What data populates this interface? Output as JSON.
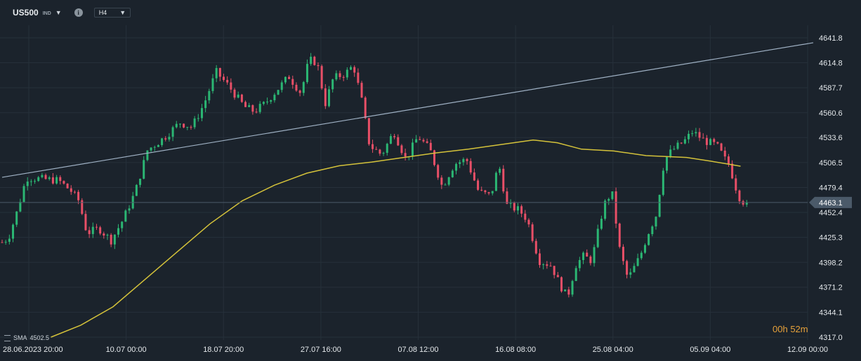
{
  "toolbar": {
    "symbol": "US500",
    "symbol_badge": "IND",
    "info_icon": "i",
    "timeframe": "H4"
  },
  "chart_data": {
    "type": "candlestick",
    "symbol": "US500",
    "timeframe": "H4",
    "y_ticks": [
      "4641.8",
      "4614.8",
      "4587.7",
      "4560.6",
      "4533.6",
      "4506.5",
      "4479.4",
      "4452.4",
      "4425.3",
      "4398.2",
      "4371.2",
      "4344.1",
      "4317.0"
    ],
    "ylim": [
      4317.0,
      4641.8
    ],
    "x_ticks": [
      "28.06.2023  20:00",
      "10.07  00:00",
      "18.07  20:00",
      "27.07  16:00",
      "07.08  12:00",
      "16.08  08:00",
      "25.08  04:00",
      "05.09  04:00",
      "12.09  00:00"
    ],
    "current_price": "4463.1",
    "indicator": {
      "name": "SMA",
      "value": "4502.5",
      "color": "#d4c23a"
    },
    "trendline": {
      "from": {
        "x": "28.06.2023  20:00",
        "y": 4490.5
      },
      "to": {
        "x": "12.09  00:00",
        "y": 4636.5
      },
      "color": "#9fb1c4"
    },
    "close_path": [
      [
        0.0,
        4420
      ],
      [
        0.008,
        4425
      ],
      [
        0.018,
        4452
      ],
      [
        0.03,
        4490
      ],
      [
        0.045,
        4489
      ],
      [
        0.07,
        4487
      ],
      [
        0.085,
        4476
      ],
      [
        0.095,
        4465
      ],
      [
        0.105,
        4430
      ],
      [
        0.12,
        4435
      ],
      [
        0.135,
        4422
      ],
      [
        0.15,
        4445
      ],
      [
        0.165,
        4475
      ],
      [
        0.18,
        4520
      ],
      [
        0.2,
        4533
      ],
      [
        0.22,
        4550
      ],
      [
        0.235,
        4545
      ],
      [
        0.25,
        4570
      ],
      [
        0.265,
        4605
      ],
      [
        0.28,
        4590
      ],
      [
        0.3,
        4567
      ],
      [
        0.312,
        4562
      ],
      [
        0.325,
        4570
      ],
      [
        0.34,
        4585
      ],
      [
        0.355,
        4600
      ],
      [
        0.37,
        4582
      ],
      [
        0.38,
        4618
      ],
      [
        0.39,
        4615
      ],
      [
        0.4,
        4570
      ],
      [
        0.41,
        4598
      ],
      [
        0.425,
        4603
      ],
      [
        0.435,
        4612
      ],
      [
        0.445,
        4575
      ],
      [
        0.455,
        4525
      ],
      [
        0.47,
        4515
      ],
      [
        0.485,
        4540
      ],
      [
        0.5,
        4510
      ],
      [
        0.515,
        4535
      ],
      [
        0.53,
        4520
      ],
      [
        0.545,
        4480
      ],
      [
        0.56,
        4505
      ],
      [
        0.575,
        4510
      ],
      [
        0.59,
        4475
      ],
      [
        0.605,
        4470
      ],
      [
        0.615,
        4505
      ],
      [
        0.625,
        4460
      ],
      [
        0.64,
        4455
      ],
      [
        0.65,
        4445
      ],
      [
        0.665,
        4400
      ],
      [
        0.68,
        4395
      ],
      [
        0.69,
        4375
      ],
      [
        0.7,
        4360
      ],
      [
        0.71,
        4395
      ],
      [
        0.72,
        4405
      ],
      [
        0.73,
        4400
      ],
      [
        0.745,
        4460
      ],
      [
        0.755,
        4475
      ],
      [
        0.765,
        4410
      ],
      [
        0.775,
        4380
      ],
      [
        0.79,
        4405
      ],
      [
        0.8,
        4430
      ],
      [
        0.81,
        4450
      ],
      [
        0.82,
        4510
      ],
      [
        0.83,
        4520
      ],
      [
        0.845,
        4530
      ],
      [
        0.855,
        4540
      ],
      [
        0.87,
        4530
      ],
      [
        0.885,
        4525
      ],
      [
        0.895,
        4510
      ],
      [
        0.9,
        4505
      ],
      [
        0.91,
        4475
      ],
      [
        0.915,
        4465
      ],
      [
        0.922,
        4463.1
      ]
    ],
    "sma_path": [
      [
        0.063,
        4317
      ],
      [
        0.1,
        4330
      ],
      [
        0.14,
        4350
      ],
      [
        0.18,
        4380
      ],
      [
        0.22,
        4410
      ],
      [
        0.26,
        4440
      ],
      [
        0.3,
        4465
      ],
      [
        0.34,
        4482
      ],
      [
        0.38,
        4495
      ],
      [
        0.42,
        4503
      ],
      [
        0.46,
        4507
      ],
      [
        0.5,
        4512
      ],
      [
        0.54,
        4517
      ],
      [
        0.58,
        4521
      ],
      [
        0.62,
        4526
      ],
      [
        0.66,
        4531
      ],
      [
        0.69,
        4528
      ],
      [
        0.72,
        4521
      ],
      [
        0.76,
        4519
      ],
      [
        0.8,
        4514
      ],
      [
        0.85,
        4512
      ],
      [
        0.88,
        4508
      ],
      [
        0.9,
        4505
      ],
      [
        0.917,
        4502.5
      ]
    ],
    "up_color": "#2bb673",
    "down_color": "#e84f67",
    "countdown": {
      "hours": "00",
      "hours_unit": "h",
      "minutes": "52",
      "minutes_unit": "m"
    }
  }
}
